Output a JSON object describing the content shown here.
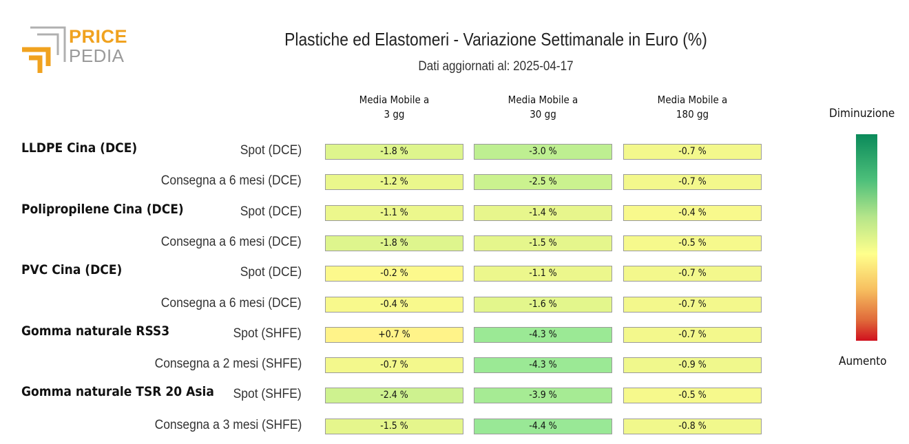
{
  "logo": {
    "line1": "PRICE",
    "line2": "PEDIA"
  },
  "chart_data": {
    "type": "table",
    "title": "Plastiche ed Elastomeri - Variazione Settimanale in Euro (%)",
    "subtitle": "Dati aggiornati al: 2025-04-17",
    "columns": [
      "Media Mobile a\n3 gg",
      "Media Mobile a\n30 gg",
      "Media Mobile a\n180 gg"
    ],
    "groups": [
      {
        "name": "LLDPE Cina (DCE)",
        "rows": [
          {
            "label": "Spot (DCE)",
            "values": [
              -1.8,
              -3.0,
              -0.7
            ],
            "texts": [
              "-1.8 %",
              "-3.0 %",
              "-0.7 %"
            ]
          },
          {
            "label": "Consegna a 6 mesi (DCE)",
            "values": [
              -1.2,
              -2.5,
              -0.7
            ],
            "texts": [
              "-1.2 %",
              "-2.5 %",
              "-0.7 %"
            ]
          }
        ]
      },
      {
        "name": "Polipropilene Cina (DCE)",
        "rows": [
          {
            "label": "Spot (DCE)",
            "values": [
              -1.1,
              -1.4,
              -0.4
            ],
            "texts": [
              "-1.1 %",
              "-1.4 %",
              "-0.4 %"
            ]
          },
          {
            "label": "Consegna a 6 mesi (DCE)",
            "values": [
              -1.8,
              -1.5,
              -0.5
            ],
            "texts": [
              "-1.8 %",
              "-1.5 %",
              "-0.5 %"
            ]
          }
        ]
      },
      {
        "name": "PVC Cina (DCE)",
        "rows": [
          {
            "label": "Spot (DCE)",
            "values": [
              -0.2,
              -1.1,
              -0.7
            ],
            "texts": [
              "-0.2 %",
              "-1.1 %",
              "-0.7 %"
            ]
          },
          {
            "label": "Consegna a 6 mesi (DCE)",
            "values": [
              -0.4,
              -1.6,
              -0.7
            ],
            "texts": [
              "-0.4 %",
              "-1.6 %",
              "-0.7 %"
            ]
          }
        ]
      },
      {
        "name": "Gomma naturale RSS3",
        "rows": [
          {
            "label": "Spot (SHFE)",
            "values": [
              0.7,
              -4.3,
              -0.7
            ],
            "texts": [
              "+0.7 %",
              "-4.3 %",
              "-0.7 %"
            ]
          },
          {
            "label": "Consegna a 2 mesi (SHFE)",
            "values": [
              -0.7,
              -4.3,
              -0.9
            ],
            "texts": [
              "-0.7 %",
              "-4.3 %",
              "-0.9 %"
            ]
          }
        ]
      },
      {
        "name": "Gomma naturale TSR 20 Asia",
        "rows": [
          {
            "label": "Spot (SHFE)",
            "values": [
              -2.4,
              -3.9,
              -0.5
            ],
            "texts": [
              "-2.4 %",
              "-3.9 %",
              "-0.5 %"
            ]
          },
          {
            "label": "Consegna a 3 mesi (SHFE)",
            "values": [
              -1.5,
              -4.4,
              -0.8
            ],
            "texts": [
              "-1.5 %",
              "-4.4 %",
              "-0.8 %"
            ]
          }
        ]
      }
    ],
    "color_scale": {
      "top_label": "Diminuzione",
      "bottom_label": "Aumento",
      "top_color": "#0a8a5a",
      "mid_color": "#ffff8c",
      "bottom_color": "#d0101e"
    }
  }
}
